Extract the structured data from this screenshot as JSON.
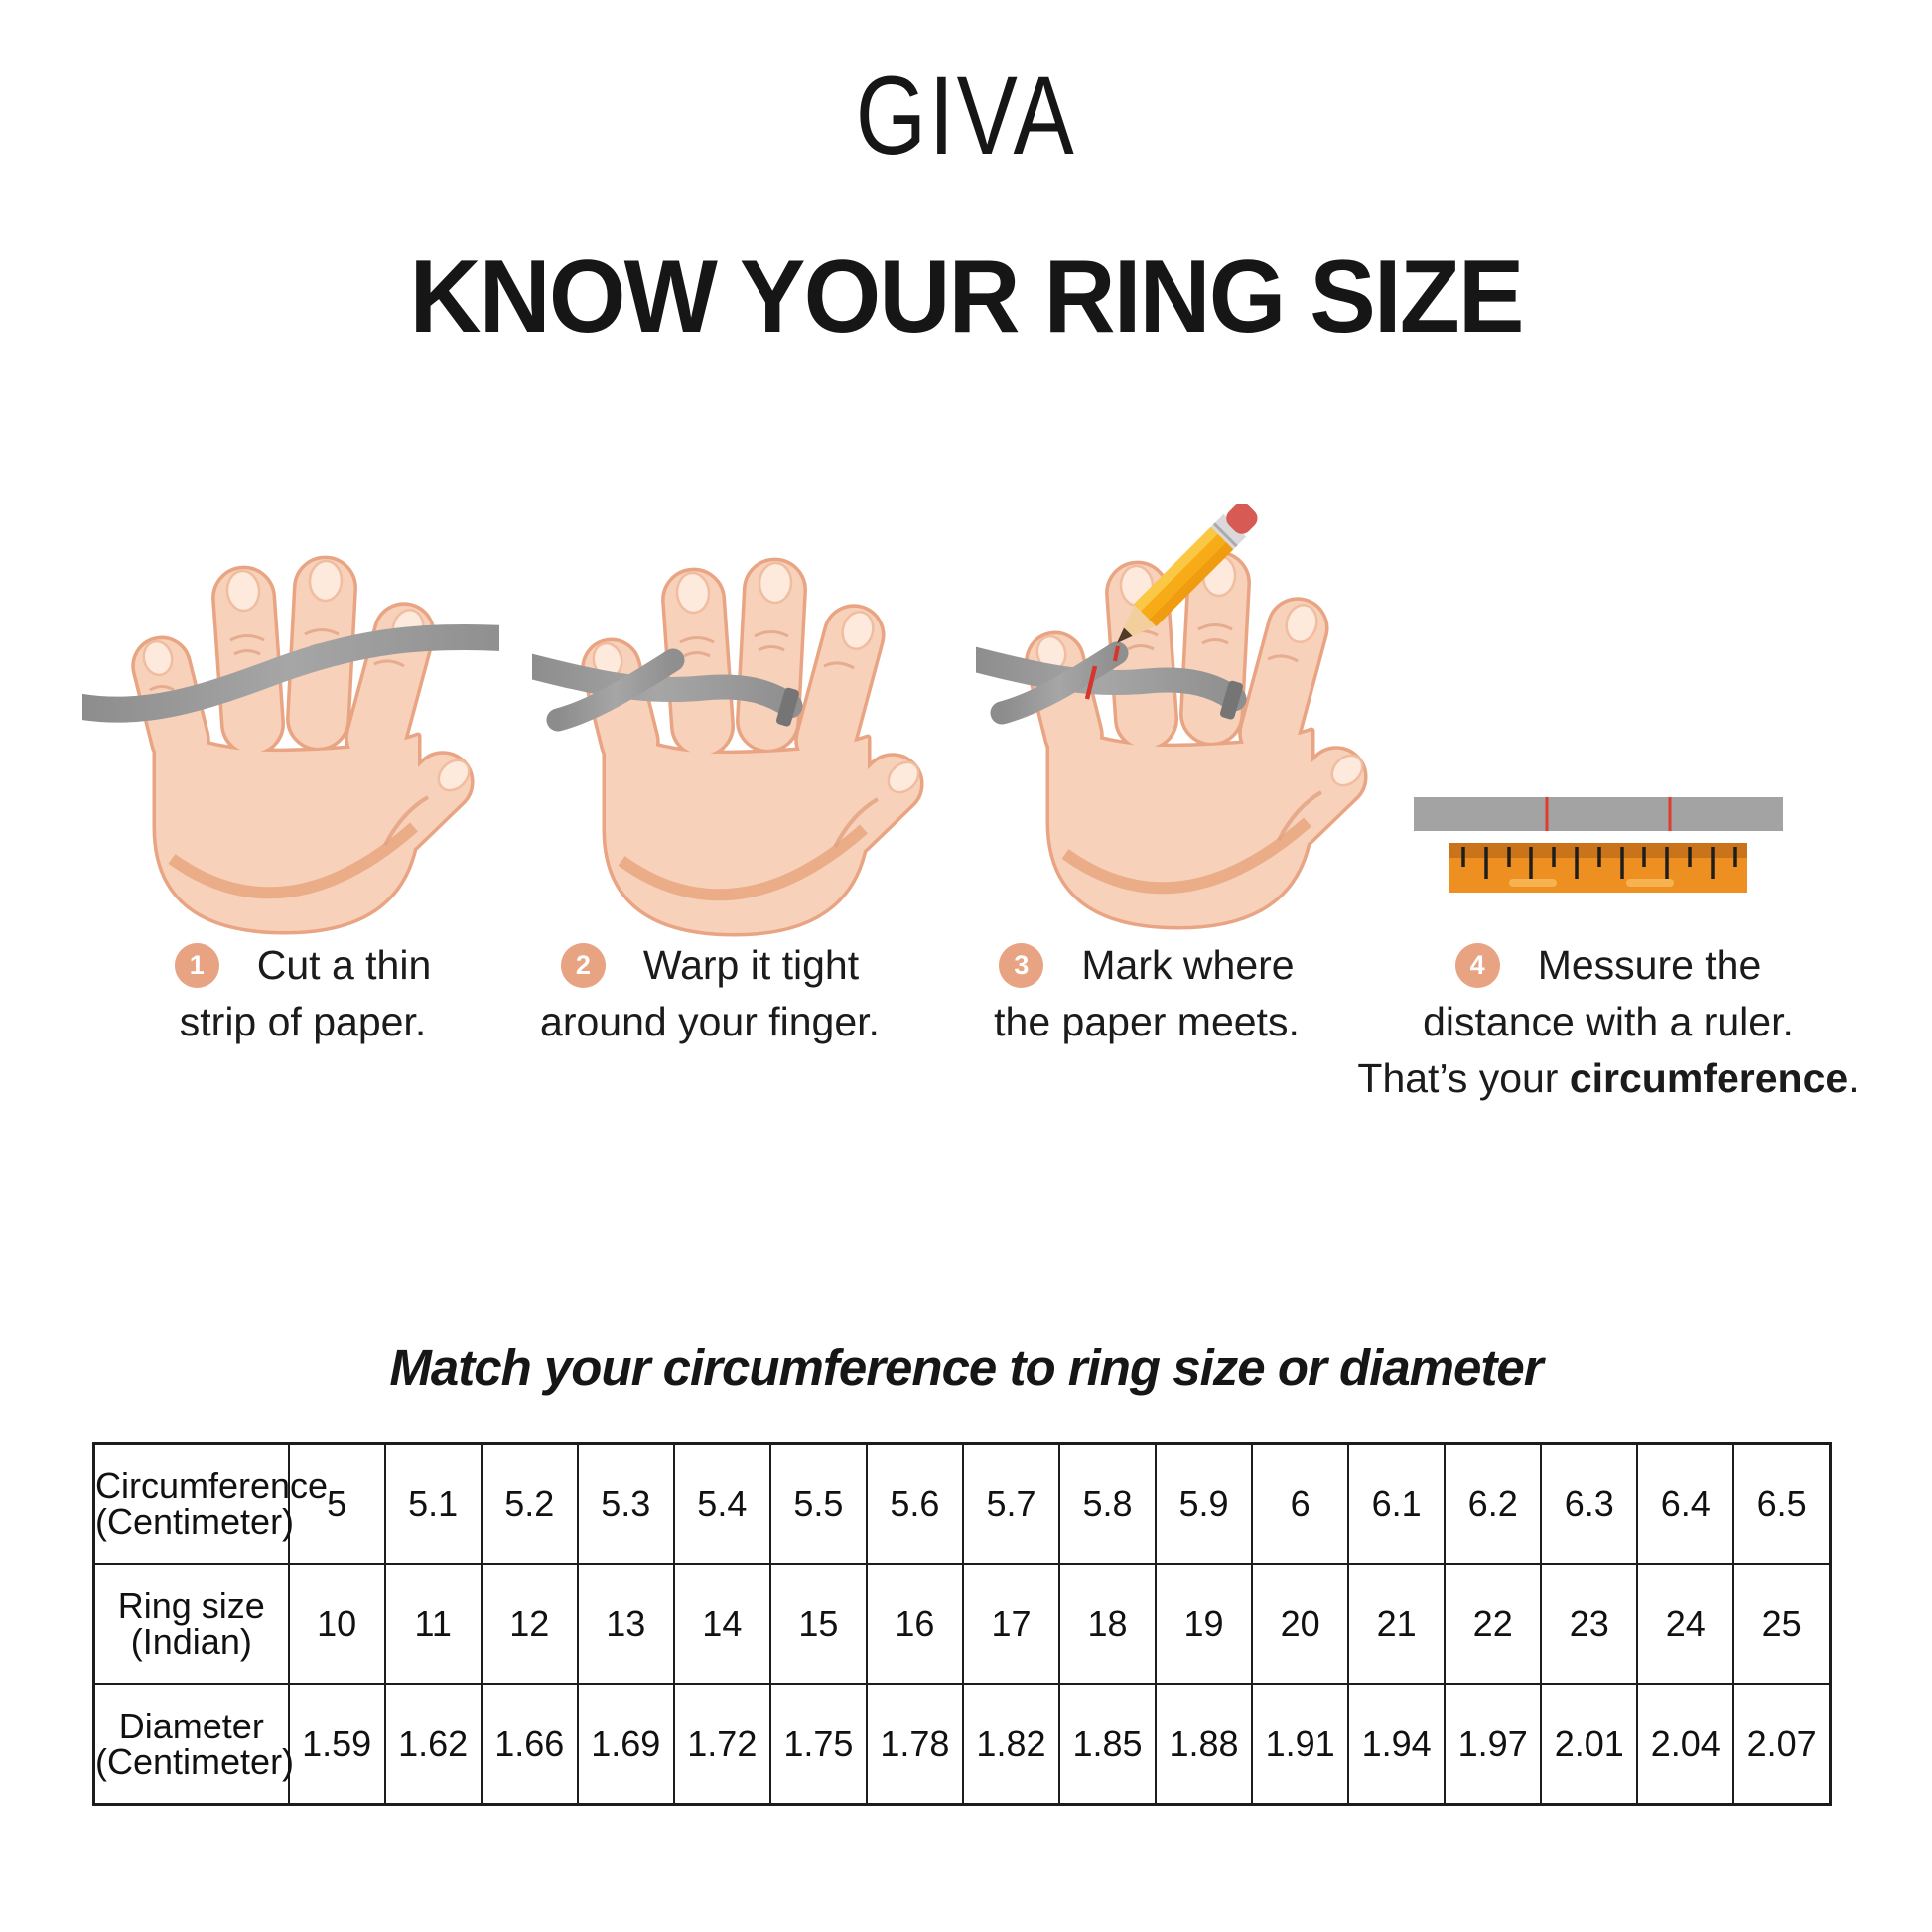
{
  "brand": "GIVA",
  "title": "KNOW YOUR RING SIZE",
  "steps": [
    {
      "number": "1",
      "line1": "Cut a thin",
      "line2": "strip of paper."
    },
    {
      "number": "2",
      "line1": "Warp it tight",
      "line2": "around your finger."
    },
    {
      "number": "3",
      "line1": "Mark where",
      "line2": "the paper meets."
    },
    {
      "number": "4",
      "line1": "Messure the",
      "line2": "distance with a ruler.",
      "line3_prefix": "That’s your ",
      "line3_bold": "circumference",
      "line3_suffix": "."
    }
  ],
  "illustrations": [
    "hand-with-paper-strip",
    "hand-strip-wrapped-around-finger",
    "hand-strip-marked-with-pencil",
    "paper-strip-and-ruler"
  ],
  "section_title": "Match your circumference to ring size or diameter",
  "chart_data": {
    "type": "table",
    "title": "Match your circumference to ring size or diameter",
    "rows": [
      {
        "label": "Circumference\n(Centimeter)",
        "values": [
          "5",
          "5.1",
          "5.2",
          "5.3",
          "5.4",
          "5.5",
          "5.6",
          "5.7",
          "5.8",
          "5.9",
          "6",
          "6.1",
          "6.2",
          "6.3",
          "6.4",
          "6.5"
        ]
      },
      {
        "label": "Ring size\n(Indian)",
        "values": [
          "10",
          "11",
          "12",
          "13",
          "14",
          "15",
          "16",
          "17",
          "18",
          "19",
          "20",
          "21",
          "22",
          "23",
          "24",
          "25"
        ]
      },
      {
        "label": "Diameter\n(Centimeter)",
        "values": [
          "1.59",
          "1.62",
          "1.66",
          "1.69",
          "1.72",
          "1.75",
          "1.78",
          "1.82",
          "1.85",
          "1.88",
          "1.91",
          "1.94",
          "1.97",
          "2.01",
          "2.04",
          "2.07"
        ]
      }
    ]
  },
  "colors": {
    "badge_peach": "#e8a383",
    "skin": "#f7d1b9",
    "skin_outline": "#e9a583",
    "strip_gray": "#9a9a9a",
    "ruler_orange": "#ee9021",
    "ruler_orange_dark": "#c9731a",
    "mark_red": "#d7352c",
    "text": "#161616"
  }
}
